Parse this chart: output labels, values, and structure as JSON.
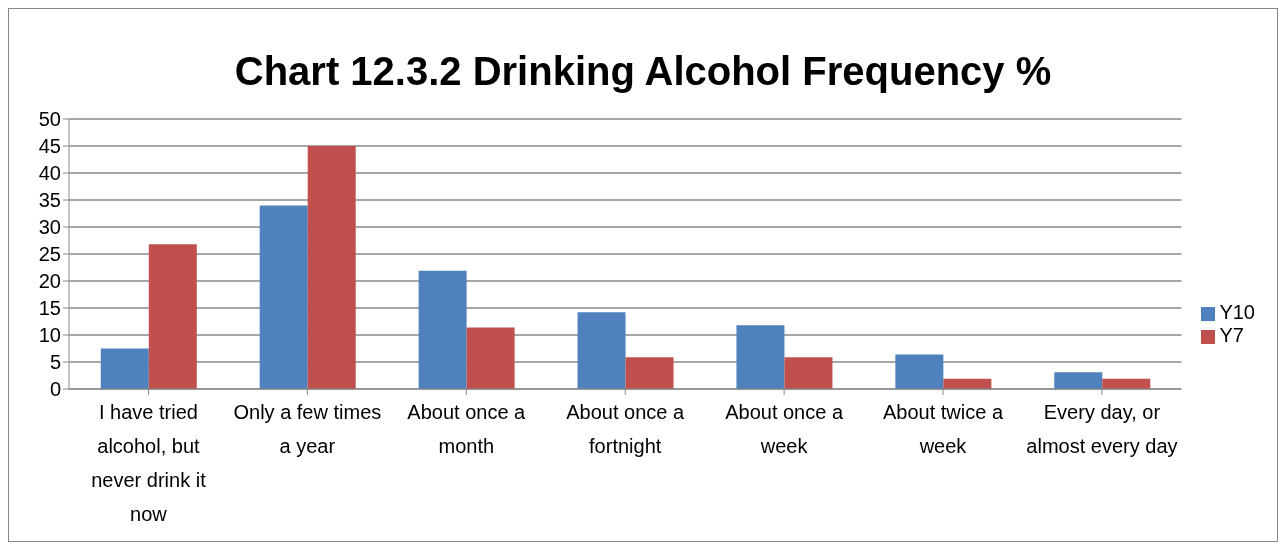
{
  "chart_data": {
    "type": "bar",
    "title": "Chart 12.3.2 Drinking Alcohol Frequency %",
    "categories": [
      "I have tried alcohol, but never drink it now",
      "Only a few times a year",
      "About once a month",
      "About once a fortnight",
      "About once a week",
      "About twice a week",
      "Every day, or almost every day"
    ],
    "series": [
      {
        "name": "Y10",
        "color": "#4f81bd",
        "values": [
          7.5,
          34,
          21.9,
          14.2,
          11.8,
          6.4,
          3.1
        ]
      },
      {
        "name": "Y7",
        "color": "#c0504d",
        "values": [
          26.8,
          45,
          11.4,
          5.9,
          5.9,
          1.9,
          1.9
        ]
      }
    ],
    "ylim": [
      0,
      50
    ],
    "yticks": [
      0,
      5,
      10,
      15,
      20,
      25,
      30,
      35,
      40,
      45,
      50
    ],
    "grid": "y",
    "legend": "right"
  }
}
